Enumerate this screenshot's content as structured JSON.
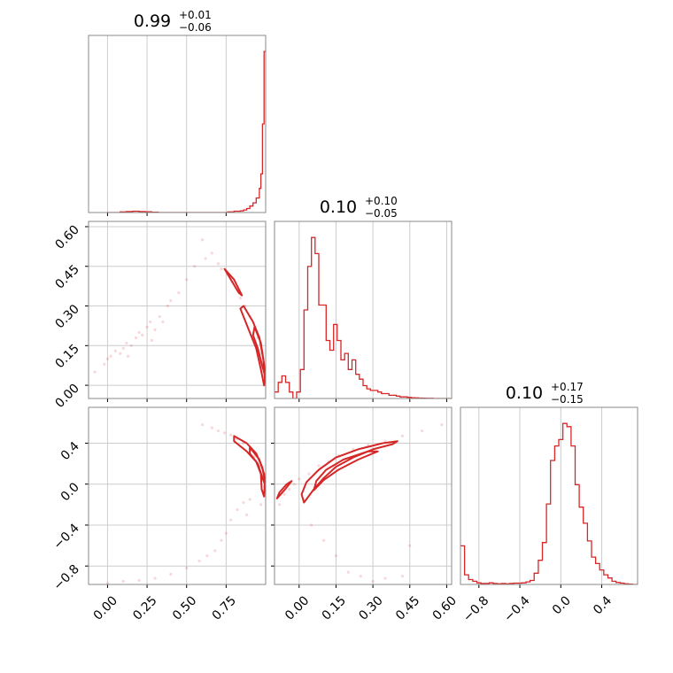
{
  "chart_data": {
    "type": "corner",
    "color": "#d62728",
    "grid": true,
    "panels": [
      {
        "id": "hist-0",
        "row": 0,
        "col": 0,
        "type": "histogram",
        "title": {
          "value": "0.99",
          "plus": "+0.01",
          "minus": "−0.06"
        },
        "xlim": [
          -0.12,
          1.0
        ],
        "xgrid": [
          0.0,
          0.25,
          0.5,
          0.75
        ],
        "bin_edges": [
          0.0,
          0.04,
          0.08,
          0.12,
          0.16,
          0.2,
          0.24,
          0.28,
          0.32,
          0.36,
          0.4,
          0.44,
          0.48,
          0.52,
          0.56,
          0.6,
          0.64,
          0.68,
          0.72,
          0.76,
          0.8,
          0.84,
          0.86,
          0.88,
          0.9,
          0.92,
          0.94,
          0.96,
          0.97,
          0.98,
          0.99,
          1.0
        ],
        "counts": [
          0,
          0,
          0.4,
          0.6,
          0.8,
          0.6,
          0.5,
          0.2,
          0,
          0,
          0,
          0,
          0,
          0,
          0,
          0,
          0,
          0,
          0,
          0.4,
          0.8,
          1,
          1.6,
          2.5,
          4,
          6,
          9,
          15,
          24,
          55,
          100
        ],
        "ymax": 100
      },
      {
        "id": "hist-1",
        "row": 1,
        "col": 1,
        "type": "histogram",
        "title": {
          "value": "0.10",
          "plus": "+0.10",
          "minus": "−0.05"
        },
        "xlim": [
          -0.1,
          0.62
        ],
        "xgrid": [
          0.0,
          0.15,
          0.3,
          0.45,
          0.6
        ],
        "bin_edges": [
          -0.1,
          -0.085,
          -0.07,
          -0.055,
          -0.04,
          -0.025,
          -0.01,
          0.005,
          0.02,
          0.035,
          0.05,
          0.065,
          0.08,
          0.095,
          0.11,
          0.125,
          0.14,
          0.155,
          0.17,
          0.185,
          0.2,
          0.215,
          0.23,
          0.245,
          0.26,
          0.275,
          0.29,
          0.305,
          0.32,
          0.335,
          0.35,
          0.365,
          0.38,
          0.395,
          0.41,
          0.425,
          0.44,
          0.455,
          0.47,
          0.485,
          0.5,
          0.515,
          0.53,
          0.545,
          0.56,
          0.575,
          0.59,
          0.605,
          0.62
        ],
        "counts": [
          4,
          10,
          14,
          10,
          4,
          0,
          4,
          18,
          55,
          82,
          100,
          90,
          58,
          58,
          36,
          30,
          46,
          36,
          24,
          28,
          18,
          24,
          15,
          12,
          8,
          6,
          5,
          5,
          4,
          3,
          3,
          2,
          2,
          1.5,
          1,
          1,
          0.7,
          0.5,
          0.4,
          0.3,
          0.2,
          0.1,
          0.1,
          0,
          0,
          0,
          0,
          0
        ],
        "ymax": 100
      },
      {
        "id": "hist-2",
        "row": 2,
        "col": 2,
        "type": "histogram",
        "title": {
          "value": "0.10",
          "plus": "+0.17",
          "minus": "−0.15"
        },
        "xlim": [
          -0.98,
          0.75
        ],
        "xgrid": [
          -0.8,
          -0.4,
          0.0,
          0.4
        ],
        "bin_edges": [
          -0.98,
          -0.94,
          -0.9,
          -0.86,
          -0.82,
          -0.78,
          -0.74,
          -0.7,
          -0.66,
          -0.62,
          -0.58,
          -0.54,
          -0.5,
          -0.46,
          -0.42,
          -0.38,
          -0.34,
          -0.3,
          -0.26,
          -0.22,
          -0.18,
          -0.14,
          -0.1,
          -0.06,
          -0.02,
          0.02,
          0.06,
          0.1,
          0.14,
          0.18,
          0.22,
          0.26,
          0.3,
          0.34,
          0.38,
          0.42,
          0.46,
          0.5,
          0.54,
          0.58,
          0.62,
          0.66,
          0.7,
          0.75
        ],
        "counts": [
          24,
          6,
          3,
          2,
          1,
          0.6,
          0.6,
          1,
          0.6,
          0.4,
          0.6,
          0.4,
          0.6,
          0.8,
          0.8,
          1,
          1.6,
          2.5,
          7,
          15,
          26,
          50,
          77,
          86,
          90,
          100,
          98,
          86,
          62,
          48,
          38,
          27,
          17,
          13,
          9,
          6,
          4,
          2,
          1.2,
          0.8,
          0.4,
          0.2,
          0
        ],
        "ymax": 100
      },
      {
        "id": "scatter-1-0",
        "row": 1,
        "col": 0,
        "type": "scatter-contour",
        "xlim": [
          -0.12,
          1.0
        ],
        "ylim": [
          -0.05,
          0.62
        ],
        "xgrid": [
          0.0,
          0.25,
          0.5,
          0.75
        ],
        "ygrid": [
          0.0,
          0.15,
          0.3,
          0.45,
          0.6
        ],
        "points": [
          [
            -0.08,
            0.05
          ],
          [
            -0.02,
            0.08
          ],
          [
            0.0,
            0.1
          ],
          [
            0.02,
            0.11
          ],
          [
            0.05,
            0.13
          ],
          [
            0.08,
            0.12
          ],
          [
            0.1,
            0.14
          ],
          [
            0.12,
            0.16
          ],
          [
            0.15,
            0.15
          ],
          [
            0.18,
            0.18
          ],
          [
            0.2,
            0.2
          ],
          [
            0.22,
            0.19
          ],
          [
            0.25,
            0.22
          ],
          [
            0.27,
            0.24
          ],
          [
            0.3,
            0.21
          ],
          [
            0.33,
            0.26
          ],
          [
            0.38,
            0.3
          ],
          [
            0.45,
            0.35
          ],
          [
            0.5,
            0.4
          ],
          [
            0.55,
            0.45
          ],
          [
            0.62,
            0.48
          ],
          [
            0.66,
            0.5
          ],
          [
            0.7,
            0.46
          ],
          [
            0.72,
            0.44
          ],
          [
            0.76,
            0.42
          ],
          [
            0.79,
            0.39
          ],
          [
            0.82,
            0.36
          ],
          [
            0.84,
            0.33
          ],
          [
            0.87,
            0.3
          ],
          [
            0.9,
            0.26
          ],
          [
            0.93,
            0.22
          ],
          [
            0.95,
            0.18
          ],
          [
            0.97,
            0.12
          ],
          [
            0.98,
            0.05
          ],
          [
            0.99,
            0.0
          ],
          [
            0.6,
            0.55
          ],
          [
            0.4,
            0.32
          ],
          [
            0.13,
            0.11
          ],
          [
            0.28,
            0.17
          ],
          [
            0.35,
            0.24
          ]
        ],
        "contours": [
          [
            [
              0.86,
              0.3
            ],
            [
              0.92,
              0.24
            ],
            [
              0.96,
              0.18
            ],
            [
              0.985,
              0.1
            ],
            [
              0.995,
              0.02
            ],
            [
              0.99,
              0.0
            ],
            [
              0.97,
              0.06
            ],
            [
              0.94,
              0.14
            ],
            [
              0.9,
              0.2
            ],
            [
              0.86,
              0.26
            ],
            [
              0.84,
              0.29
            ]
          ],
          [
            [
              0.93,
              0.22
            ],
            [
              0.97,
              0.16
            ],
            [
              0.99,
              0.08
            ],
            [
              0.995,
              0.04
            ],
            [
              0.98,
              0.07
            ],
            [
              0.95,
              0.14
            ],
            [
              0.92,
              0.19
            ]
          ],
          [
            [
              0.74,
              0.44
            ],
            [
              0.8,
              0.4
            ],
            [
              0.85,
              0.34
            ],
            [
              0.83,
              0.35
            ],
            [
              0.78,
              0.4
            ]
          ]
        ]
      },
      {
        "id": "scatter-2-0",
        "row": 2,
        "col": 0,
        "type": "scatter-contour",
        "xlim": [
          -0.12,
          1.0
        ],
        "ylim": [
          -0.98,
          0.75
        ],
        "xgrid": [
          0.0,
          0.25,
          0.5,
          0.75
        ],
        "ygrid": [
          -0.8,
          -0.4,
          0.0,
          0.4
        ],
        "points": [
          [
            0.0,
            -0.97
          ],
          [
            0.1,
            -0.95
          ],
          [
            0.2,
            -0.94
          ],
          [
            0.3,
            -0.92
          ],
          [
            0.4,
            -0.88
          ],
          [
            0.5,
            -0.82
          ],
          [
            0.58,
            -0.75
          ],
          [
            0.63,
            -0.7
          ],
          [
            0.68,
            -0.65
          ],
          [
            0.72,
            -0.55
          ],
          [
            0.75,
            -0.48
          ],
          [
            0.78,
            -0.35
          ],
          [
            0.82,
            -0.25
          ],
          [
            0.86,
            -0.18
          ],
          [
            0.9,
            -0.15
          ],
          [
            0.6,
            0.58
          ],
          [
            0.66,
            0.55
          ],
          [
            0.7,
            0.52
          ],
          [
            0.74,
            0.5
          ],
          [
            0.78,
            0.48
          ],
          [
            0.82,
            0.44
          ],
          [
            0.86,
            0.4
          ],
          [
            0.9,
            0.34
          ],
          [
            0.93,
            0.27
          ],
          [
            0.96,
            0.18
          ],
          [
            0.98,
            0.08
          ],
          [
            0.99,
            -0.02
          ],
          [
            0.99,
            -0.12
          ],
          [
            0.97,
            -0.2
          ],
          [
            0.88,
            -0.3
          ]
        ],
        "contours": [
          [
            [
              0.8,
              0.47
            ],
            [
              0.88,
              0.4
            ],
            [
              0.94,
              0.3
            ],
            [
              0.98,
              0.16
            ],
            [
              0.995,
              0.02
            ],
            [
              0.99,
              -0.12
            ],
            [
              0.975,
              -0.05
            ],
            [
              0.97,
              0.1
            ],
            [
              0.94,
              0.22
            ],
            [
              0.88,
              0.32
            ],
            [
              0.8,
              0.42
            ]
          ],
          [
            [
              0.9,
              0.36
            ],
            [
              0.96,
              0.24
            ],
            [
              0.99,
              0.1
            ],
            [
              0.995,
              0.0
            ],
            [
              0.98,
              0.06
            ],
            [
              0.95,
              0.2
            ],
            [
              0.9,
              0.3
            ]
          ]
        ]
      },
      {
        "id": "scatter-2-1",
        "row": 2,
        "col": 1,
        "type": "scatter-contour",
        "xlim": [
          -0.1,
          0.62
        ],
        "ylim": [
          -0.98,
          0.75
        ],
        "xgrid": [
          0.0,
          0.15,
          0.3,
          0.45,
          0.6
        ],
        "ygrid": [
          -0.8,
          -0.4,
          0.0,
          0.4
        ],
        "points": [
          [
            -0.08,
            -0.2
          ],
          [
            -0.06,
            -0.1
          ],
          [
            -0.04,
            -0.05
          ],
          [
            -0.02,
            0.0
          ],
          [
            0.0,
            0.05
          ],
          [
            0.04,
            0.1
          ],
          [
            0.08,
            0.18
          ],
          [
            0.12,
            0.22
          ],
          [
            0.16,
            0.28
          ],
          [
            0.22,
            0.34
          ],
          [
            0.28,
            0.38
          ],
          [
            0.35,
            0.42
          ],
          [
            0.42,
            0.47
          ],
          [
            0.5,
            0.52
          ],
          [
            0.58,
            0.58
          ],
          [
            0.05,
            -0.4
          ],
          [
            0.1,
            -0.55
          ],
          [
            0.15,
            -0.7
          ],
          [
            0.2,
            -0.86
          ],
          [
            0.25,
            -0.9
          ],
          [
            0.35,
            -0.92
          ],
          [
            0.42,
            -0.9
          ],
          [
            0.45,
            -0.6
          ],
          [
            0.3,
            -0.95
          ]
        ],
        "contours": [
          [
            [
              0.02,
              -0.18
            ],
            [
              0.06,
              -0.05
            ],
            [
              0.1,
              0.06
            ],
            [
              0.15,
              0.17
            ],
            [
              0.22,
              0.26
            ],
            [
              0.3,
              0.34
            ],
            [
              0.38,
              0.39
            ],
            [
              0.4,
              0.42
            ],
            [
              0.34,
              0.4
            ],
            [
              0.24,
              0.34
            ],
            [
              0.15,
              0.26
            ],
            [
              0.08,
              0.14
            ],
            [
              0.03,
              0.02
            ],
            [
              0.01,
              -0.1
            ]
          ],
          [
            [
              0.06,
              -0.06
            ],
            [
              0.1,
              0.04
            ],
            [
              0.16,
              0.14
            ],
            [
              0.24,
              0.24
            ],
            [
              0.32,
              0.32
            ],
            [
              0.28,
              0.32
            ],
            [
              0.18,
              0.24
            ],
            [
              0.11,
              0.14
            ],
            [
              0.07,
              0.03
            ]
          ],
          [
            [
              -0.09,
              -0.14
            ],
            [
              -0.06,
              -0.06
            ],
            [
              -0.03,
              0.03
            ],
            [
              -0.05,
              0.0
            ],
            [
              -0.08,
              -0.08
            ]
          ]
        ]
      }
    ],
    "x_tick_labels": {
      "col0": [
        "0.00",
        "0.25",
        "0.50",
        "0.75"
      ],
      "col1": [
        "0.00",
        "0.15",
        "0.30",
        "0.45",
        "0.60"
      ],
      "col2": [
        "−0.8",
        "−0.4",
        "0.0",
        "0.4"
      ]
    },
    "y_tick_labels": {
      "row1": [
        "0.00",
        "0.15",
        "0.30",
        "0.45",
        "0.60"
      ],
      "row2": [
        "−0.8",
        "−0.4",
        "0.0",
        "0.4"
      ]
    }
  }
}
